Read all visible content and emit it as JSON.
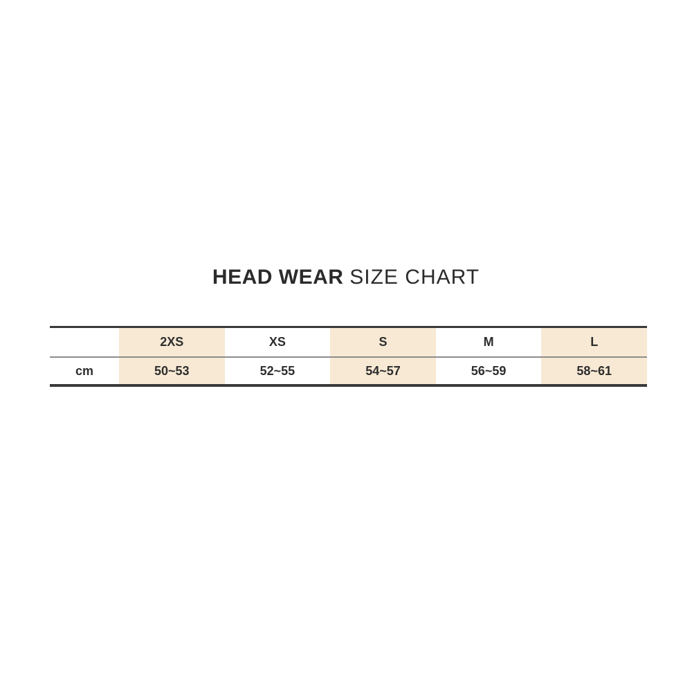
{
  "title": {
    "primary": "HEAD WEAR",
    "secondary": "SIZE CHART"
  },
  "size_table": {
    "row_header": "cm",
    "columns": [
      {
        "label": "2XS",
        "cm_range": "50~53",
        "shaded": true
      },
      {
        "label": "XS",
        "cm_range": "52~55",
        "shaded": false
      },
      {
        "label": "S",
        "cm_range": "54~57",
        "shaded": true
      },
      {
        "label": "M",
        "cm_range": "56~59",
        "shaded": false
      },
      {
        "label": "L",
        "cm_range": "58~61",
        "shaded": true
      }
    ]
  },
  "chart_data": {
    "type": "table",
    "title": "HEAD WEAR SIZE CHART",
    "columns": [
      "",
      "2XS",
      "XS",
      "S",
      "M",
      "L"
    ],
    "rows": [
      [
        "cm",
        "50~53",
        "52~55",
        "54~57",
        "56~59",
        "58~61"
      ]
    ],
    "shaded_columns": [
      "2XS",
      "S",
      "L"
    ],
    "unit": "cm"
  },
  "colors": {
    "background": "#ffffff",
    "shaded_column_bg": "#f8e9d4",
    "border_dark": "#3a3a3a",
    "border_light": "#8c8c8c",
    "text": "#2d2d2d"
  }
}
